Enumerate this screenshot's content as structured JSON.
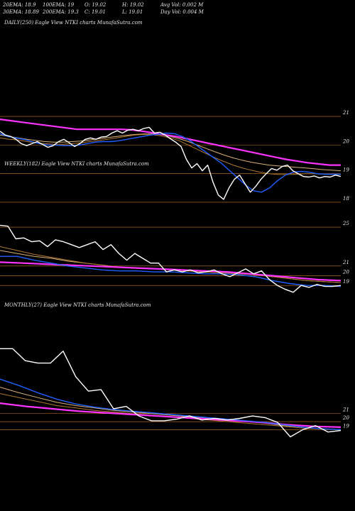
{
  "header": {
    "row1": [
      "20EMA: 18.9",
      "100EMA: 19",
      "O: 19.02",
      "H: 19.02",
      "Avg Vol: 0.002  M"
    ],
    "row2": [
      "30EMA: 18.89",
      "200EMA: 19.3",
      "C: 19.01",
      "L: 19.01",
      "Day Vol: 0.004 M"
    ]
  },
  "colors": {
    "background": "#000000",
    "price": "#ffffff",
    "ema_blue": "#1f5fff",
    "ema_magenta": "#ff33ff",
    "ema_brown": "#b07830",
    "ema_tan": "#d8b27a",
    "gridline": "#c87a2a"
  },
  "chart_data": [
    {
      "type": "line",
      "title": "DAILY(250) Eagle  View  NTKI charts MunafaSutra.com",
      "y_ticks": [
        "21",
        "20",
        "19",
        "18"
      ],
      "ylim": [
        17.75,
        21.35
      ],
      "series": [
        {
          "role": "price",
          "values": [
            20.48,
            20.35,
            20.3,
            20.2,
            20.05,
            19.98,
            20.05,
            20.12,
            20.02,
            19.92,
            19.98,
            20.12,
            20.2,
            20.08,
            19.95,
            20.05,
            20.2,
            20.25,
            20.2,
            20.28,
            20.3,
            20.42,
            20.5,
            20.42,
            20.52,
            20.55,
            20.5,
            20.58,
            20.62,
            20.42,
            20.45,
            20.35,
            20.22,
            20.1,
            19.95,
            19.5,
            19.2,
            19.35,
            19.1,
            19.3,
            18.7,
            18.25,
            18.1,
            18.5,
            18.8,
            18.95,
            18.65,
            18.35,
            18.55,
            18.8,
            19.0,
            19.18,
            19.12,
            19.25,
            19.3,
            19.1,
            19.0,
            18.9,
            18.88,
            18.92,
            18.85,
            18.9,
            18.88,
            18.95,
            18.9
          ]
        },
        {
          "role": "ema_blue",
          "values": [
            20.4,
            20.3,
            20.25,
            20.2,
            20.12,
            20.05,
            20.0,
            20.0,
            19.98,
            19.98,
            20.0,
            20.05,
            20.1,
            20.12,
            20.12,
            20.15,
            20.2,
            20.25,
            20.3,
            20.35,
            20.38,
            20.42,
            20.4,
            20.3,
            20.15,
            19.95,
            19.75,
            19.55,
            19.35,
            19.1,
            18.85,
            18.6,
            18.4,
            18.35,
            18.5,
            18.75,
            18.95,
            19.05,
            19.08,
            19.05,
            19.0,
            18.98,
            18.98,
            18.98
          ]
        },
        {
          "role": "ema_brown",
          "values": [
            20.25,
            20.2,
            20.18,
            20.12,
            20.08,
            20.05,
            20.03,
            20.03,
            20.05,
            20.08,
            20.12,
            20.16,
            20.2,
            20.25,
            20.3,
            20.35,
            20.37,
            20.36,
            20.32,
            20.25,
            20.15,
            20.0,
            19.85,
            19.7,
            19.55,
            19.42,
            19.3,
            19.2,
            19.12,
            19.05,
            19.0,
            18.97,
            18.97,
            18.98,
            19.0,
            19.0,
            18.98,
            18.97,
            18.97
          ]
        },
        {
          "role": "ema_tan",
          "values": [
            20.35,
            20.3,
            20.25,
            20.2,
            20.16,
            20.12,
            20.1,
            20.1,
            20.12,
            20.14,
            20.18,
            20.22,
            20.26,
            20.3,
            20.34,
            20.37,
            20.39,
            20.39,
            20.36,
            20.3,
            20.22,
            20.12,
            20.0,
            19.88,
            19.76,
            19.65,
            19.55,
            19.47,
            19.4,
            19.35,
            19.3,
            19.27,
            19.25,
            19.22,
            19.2,
            19.17,
            19.14,
            19.12,
            19.1
          ]
        },
        {
          "role": "ema_magenta",
          "values": [
            20.9,
            20.85,
            20.8,
            20.75,
            20.7,
            20.65,
            20.6,
            20.55,
            20.55,
            20.55,
            20.55,
            20.55,
            20.53,
            20.48,
            20.42,
            20.36,
            20.3,
            20.22,
            20.14,
            20.06,
            19.98,
            19.9,
            19.82,
            19.74,
            19.66,
            19.58,
            19.5,
            19.44,
            19.38,
            19.34,
            19.3,
            19.3
          ]
        }
      ]
    },
    {
      "type": "line",
      "title": "WEEKLY(182) Eagle  View  NTKI charts MunafaSutra.com",
      "y_ticks": [
        "25",
        "21",
        "20",
        "19"
      ],
      "ylim": [
        17.7,
        27.2
      ],
      "series": [
        {
          "role": "price",
          "values": [
            25.2,
            25.1,
            23.8,
            23.9,
            23.5,
            23.6,
            23.0,
            23.7,
            23.5,
            23.2,
            22.9,
            23.2,
            23.5,
            22.7,
            23.2,
            22.3,
            21.6,
            22.3,
            21.8,
            21.3,
            21.3,
            20.4,
            20.6,
            20.4,
            20.6,
            20.3,
            20.4,
            20.6,
            20.2,
            19.9,
            20.3,
            20.7,
            20.2,
            20.5,
            19.6,
            19.0,
            18.6,
            18.3,
            19.0,
            18.8,
            19.1,
            18.9,
            18.9,
            19.0
          ]
        },
        {
          "role": "ema_blue",
          "values": [
            22.0,
            22.0,
            21.6,
            21.3,
            21.0,
            20.8,
            20.6,
            20.5,
            20.5,
            20.4,
            20.4,
            20.3,
            20.2,
            20.2,
            20.1,
            19.9,
            19.5,
            19.2,
            19.0,
            19.0,
            18.9
          ]
        },
        {
          "role": "ema_brown",
          "values": [
            23.0,
            22.6,
            22.2,
            21.9,
            21.6,
            21.3,
            21.1,
            20.9,
            20.8,
            20.7,
            20.6,
            20.5,
            20.4,
            20.3,
            20.2,
            20.1,
            19.9,
            19.7,
            19.5,
            19.4,
            19.3
          ]
        },
        {
          "role": "ema_tan",
          "values": [
            22.6,
            22.3,
            22.0,
            21.8,
            21.5,
            21.3,
            21.1,
            20.9,
            20.8,
            20.7,
            20.6,
            20.5,
            20.4,
            20.3,
            20.2,
            20.1,
            19.9,
            19.7,
            19.5,
            19.4,
            19.3
          ]
        },
        {
          "role": "ema_magenta",
          "values": [
            21.4,
            21.3,
            21.2,
            21.1,
            21.0,
            20.9,
            20.8,
            20.7,
            20.6,
            20.5,
            20.4,
            20.2,
            20.0,
            19.8,
            19.6,
            19.5
          ]
        }
      ]
    },
    {
      "type": "line",
      "title": "MONTHLY(27) Eagle  View  NTKI charts MunafaSutra.com",
      "y_ticks": [
        "21",
        "20",
        "19"
      ],
      "ylim": [
        17.7,
        30.1
      ],
      "series": [
        {
          "role": "price",
          "values": [
            29.1,
            29.1,
            27.6,
            27.3,
            27.3,
            28.8,
            25.6,
            23.8,
            24.0,
            21.6,
            21.9,
            20.7,
            20.1,
            20.1,
            20.3,
            20.7,
            20.2,
            20.4,
            20.2,
            20.4,
            20.7,
            20.5,
            19.9,
            18.1,
            19.0,
            19.5,
            18.7,
            18.9
          ]
        },
        {
          "role": "ema_blue",
          "values": [
            25.3,
            24.5,
            23.6,
            22.8,
            22.2,
            21.8,
            21.5,
            21.3,
            21.1,
            20.9,
            20.7,
            20.5,
            20.3,
            20.1,
            19.9,
            19.6,
            19.3,
            19.1,
            19.0
          ]
        },
        {
          "role": "ema_brown",
          "values": [
            23.5,
            23.0,
            22.5,
            22.0,
            21.7,
            21.4,
            21.2,
            21.0,
            20.8,
            20.6,
            20.4,
            20.2,
            20.0,
            19.8,
            19.6,
            19.4,
            19.2,
            19.1,
            19.0
          ]
        },
        {
          "role": "ema_tan",
          "values": [
            24.3,
            23.6,
            23.0,
            22.4,
            22.0,
            21.7,
            21.4,
            21.2,
            21.0,
            20.8,
            20.6,
            20.4,
            20.2,
            20.0,
            19.8,
            19.5,
            19.3,
            19.1,
            19.0
          ]
        },
        {
          "role": "ema_magenta",
          "values": [
            22.3,
            21.9,
            21.6,
            21.3,
            21.1,
            20.9,
            20.7,
            20.5,
            20.3,
            20.1,
            19.9,
            19.6,
            19.4,
            19.3
          ]
        }
      ]
    }
  ]
}
